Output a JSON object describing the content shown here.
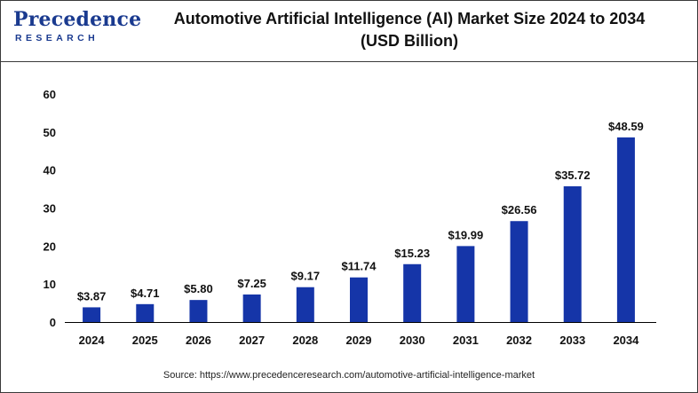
{
  "logo": {
    "word": "Precedence",
    "sub": "RESEARCH"
  },
  "header": {
    "title_line1": "Automotive Artificial Intelligence (AI) Market Size 2024 to 2034",
    "title_line2": "(USD Billion)"
  },
  "source": "Source: https://www.precedenceresearch.com/automotive-artificial-intelligence-market",
  "colors": {
    "bar": "#1535a8",
    "axis": "#000000",
    "text": "#111111"
  },
  "chart_data": {
    "type": "bar",
    "title": "Automotive Artificial Intelligence (AI) Market Size 2024 to 2034 (USD Billion)",
    "categories": [
      "2024",
      "2025",
      "2026",
      "2027",
      "2028",
      "2029",
      "2030",
      "2031",
      "2032",
      "2033",
      "2034"
    ],
    "values": [
      3.87,
      4.71,
      5.8,
      7.25,
      9.17,
      11.74,
      15.23,
      19.99,
      26.56,
      35.72,
      48.59
    ],
    "data_labels": [
      "$3.87",
      "$4.71",
      "$5.80",
      "$7.25",
      "$9.17",
      "$11.74",
      "$15.23",
      "$19.99",
      "$26.56",
      "$35.72",
      "$48.59"
    ],
    "y_ticks": [
      0,
      10,
      20,
      30,
      40,
      50,
      60
    ],
    "ylim": [
      0,
      60
    ],
    "xlabel": "",
    "ylabel": "",
    "grid": false,
    "legend": "none"
  }
}
